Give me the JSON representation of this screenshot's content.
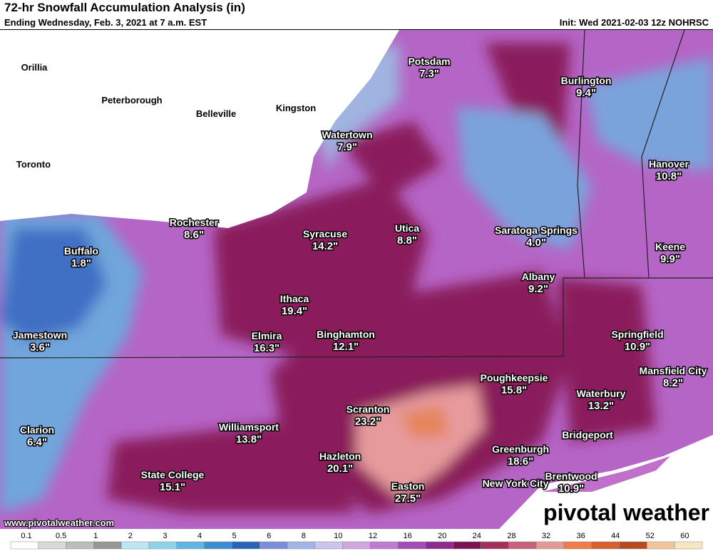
{
  "header": {
    "title": "72-hr Snowfall Accumulation Analysis (in)",
    "subtitle": "Ending Wednesday, Feb. 3, 2021 at 7 a.m. EST",
    "init": "Init: Wed 2021-02-03 12z NOHRSC"
  },
  "places": [
    {
      "name": "Orillia"
    },
    {
      "name": "Peterborough"
    },
    {
      "name": "Belleville"
    },
    {
      "name": "Kingston"
    },
    {
      "name": "Toronto"
    }
  ],
  "stations": [
    {
      "name": "Potsdam",
      "value": "7.3\""
    },
    {
      "name": "Burlington",
      "value": "9.4\""
    },
    {
      "name": "Watertown",
      "value": "7.9\""
    },
    {
      "name": "Hanover",
      "value": "10.8\""
    },
    {
      "name": "Rochester",
      "value": "8.6\""
    },
    {
      "name": "Syracuse",
      "value": "14.2\""
    },
    {
      "name": "Utica",
      "value": "8.8\""
    },
    {
      "name": "Saratoga Springs",
      "value": "4.0\""
    },
    {
      "name": "Buffalo",
      "value": "1.8\""
    },
    {
      "name": "Keene",
      "value": "9.9\""
    },
    {
      "name": "Albany",
      "value": "9.2\""
    },
    {
      "name": "Ithaca",
      "value": "19.4\""
    },
    {
      "name": "Elmira",
      "value": "16.3\""
    },
    {
      "name": "Binghamton",
      "value": "12.1\""
    },
    {
      "name": "Jamestown",
      "value": "3.6\""
    },
    {
      "name": "Springfield",
      "value": "10.9\""
    },
    {
      "name": "Mansfield City",
      "value": "8.2\""
    },
    {
      "name": "Poughkeepsie",
      "value": "15.8\""
    },
    {
      "name": "Waterbury",
      "value": "13.2\""
    },
    {
      "name": "Scranton",
      "value": "23.2\""
    },
    {
      "name": "Williamsport",
      "value": "13.8\""
    },
    {
      "name": "Clarion",
      "value": "6.4\""
    },
    {
      "name": "Bridgeport"
    },
    {
      "name": "Greenburgh",
      "value": "18.6\""
    },
    {
      "name": "Hazleton",
      "value": "20.1\""
    },
    {
      "name": "State College",
      "value": "15.1\""
    },
    {
      "name": "Brentwood",
      "value": "10.9\""
    },
    {
      "name": "Easton",
      "value": "27.5\""
    },
    {
      "name": "New York City"
    }
  ],
  "footer": {
    "url": "www.pivotalweather.com",
    "brand": "pivotal weather"
  },
  "legend": {
    "labels": [
      "0.1",
      "0.5",
      "1",
      "2",
      "3",
      "4",
      "5",
      "6",
      "8",
      "10",
      "12",
      "16",
      "20",
      "24",
      "28",
      "32",
      "36",
      "44",
      "52",
      "60"
    ]
  }
}
